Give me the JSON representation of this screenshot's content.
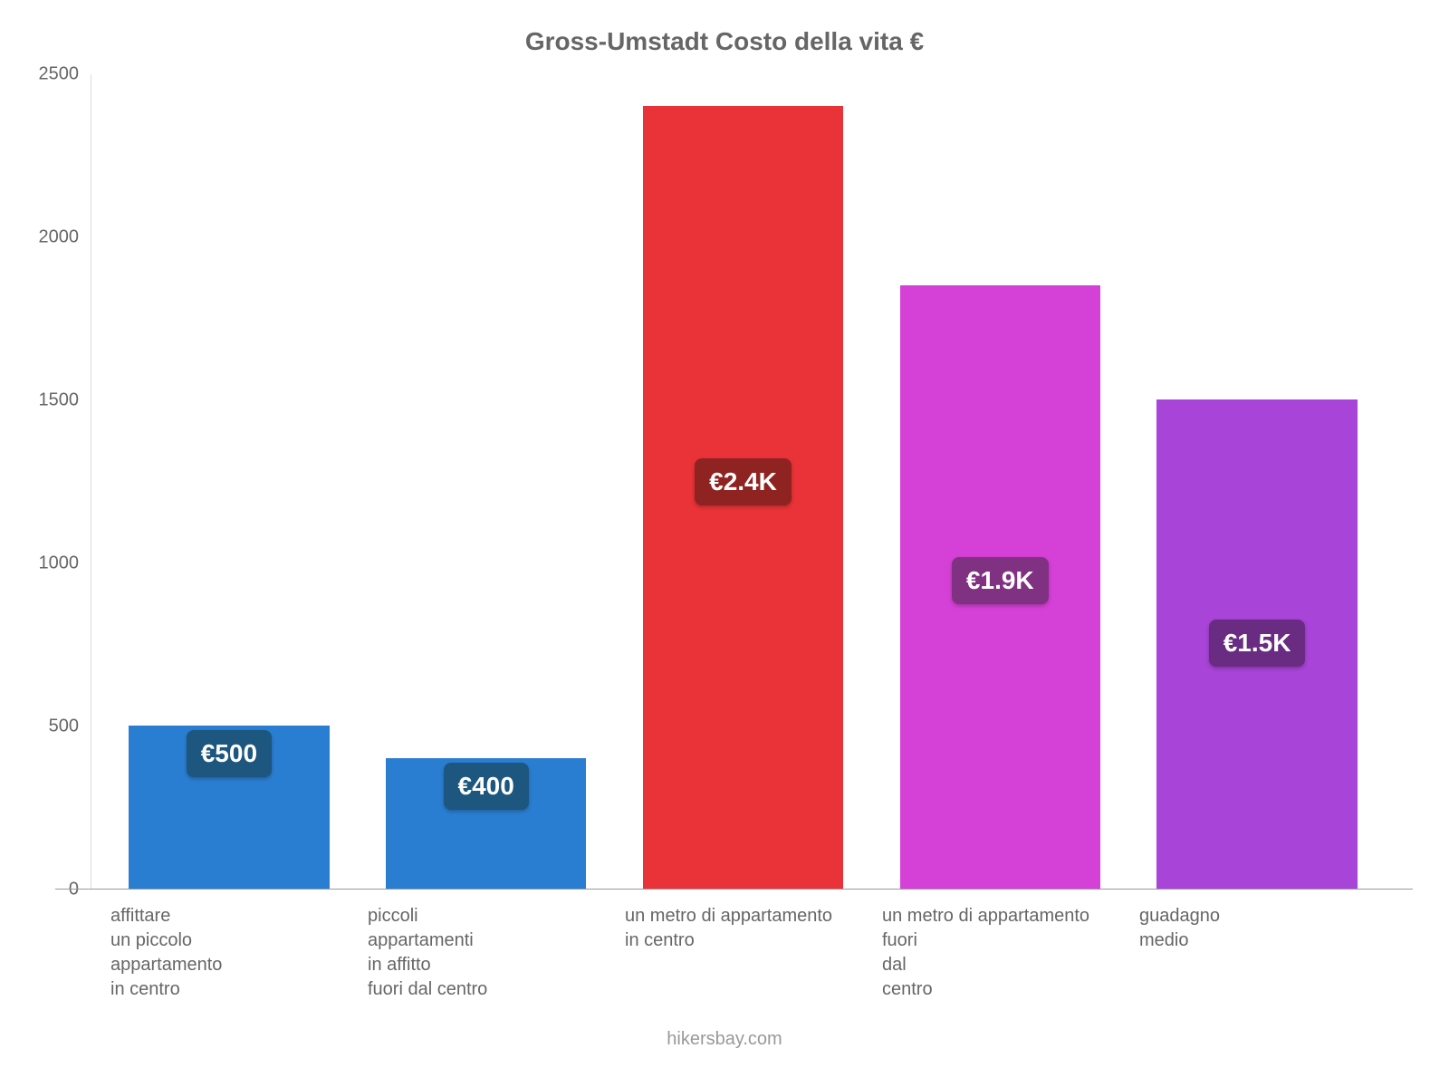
{
  "chart": {
    "type": "bar",
    "title": "Gross-Umstadt Costo della vita €",
    "title_fontsize": 28,
    "title_color": "#666666",
    "background_color": "#ffffff",
    "ylim": [
      0,
      2500
    ],
    "ytick_step": 500,
    "yticks": [
      0,
      500,
      1000,
      1500,
      2000,
      2500
    ],
    "axis_color": "#999999",
    "tick_color": "#666666",
    "tick_fontsize": 20,
    "bar_width_pct": 78,
    "categories": [
      "affittare\nun piccolo\nappartamento\nin centro",
      "piccoli\nappartamenti\nin affitto\nfuori dal centro",
      "un metro di appartamento\nin centro",
      "un metro di appartamento\nfuori\ndal\ncentro",
      "guadagno\nmedio"
    ],
    "values": [
      500,
      400,
      2400,
      1850,
      1500
    ],
    "value_labels": [
      "€500",
      "€400",
      "€2.4K",
      "€1.9K",
      "€1.5K"
    ],
    "bar_colors": [
      "#2a7ed2",
      "#2a7ed2",
      "#ea3338",
      "#d541d7",
      "#a844d8"
    ],
    "label_bg_colors": [
      "#1d567e",
      "#1d567e",
      "#8f2321",
      "#803181",
      "#6a2b82"
    ],
    "label_fontsize": 28,
    "label_text_color": "#ffffff",
    "xlabel_fontsize": 20,
    "xlabel_color": "#666666",
    "footer": "hikersbay.com",
    "footer_color": "#999999",
    "footer_fontsize": 20
  }
}
